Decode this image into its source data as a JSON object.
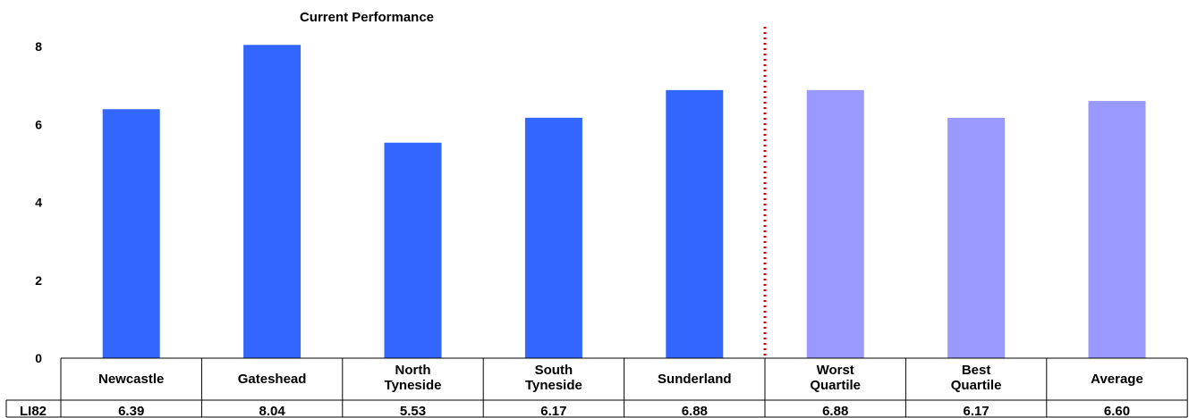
{
  "chart_data": {
    "type": "bar",
    "title": "Current Performance",
    "categories": [
      [
        "Newcastle"
      ],
      [
        "Gateshead"
      ],
      [
        "North",
        "Tyneside"
      ],
      [
        "South",
        "Tyneside"
      ],
      [
        "Sunderland"
      ],
      [
        "Worst",
        "Quartile"
      ],
      [
        "Best",
        "Quartile"
      ],
      [
        "Average"
      ]
    ],
    "values": [
      6.39,
      8.04,
      5.53,
      6.17,
      6.88,
      6.88,
      6.17,
      6.6
    ],
    "value_labels": [
      "6.39",
      "8.04",
      "5.53",
      "6.17",
      "6.88",
      "6.88",
      "6.17",
      "6.60"
    ],
    "table_row_label": "LI82",
    "ylim": [
      0,
      8
    ],
    "yticks": [
      0,
      2,
      4,
      6,
      8
    ],
    "grid": false,
    "colors": [
      "#3366FF",
      "#3366FF",
      "#3366FF",
      "#3366FF",
      "#3366FF",
      "#9999FF",
      "#9999FF",
      "#9999FF"
    ],
    "divider_color": "#CC0000"
  }
}
